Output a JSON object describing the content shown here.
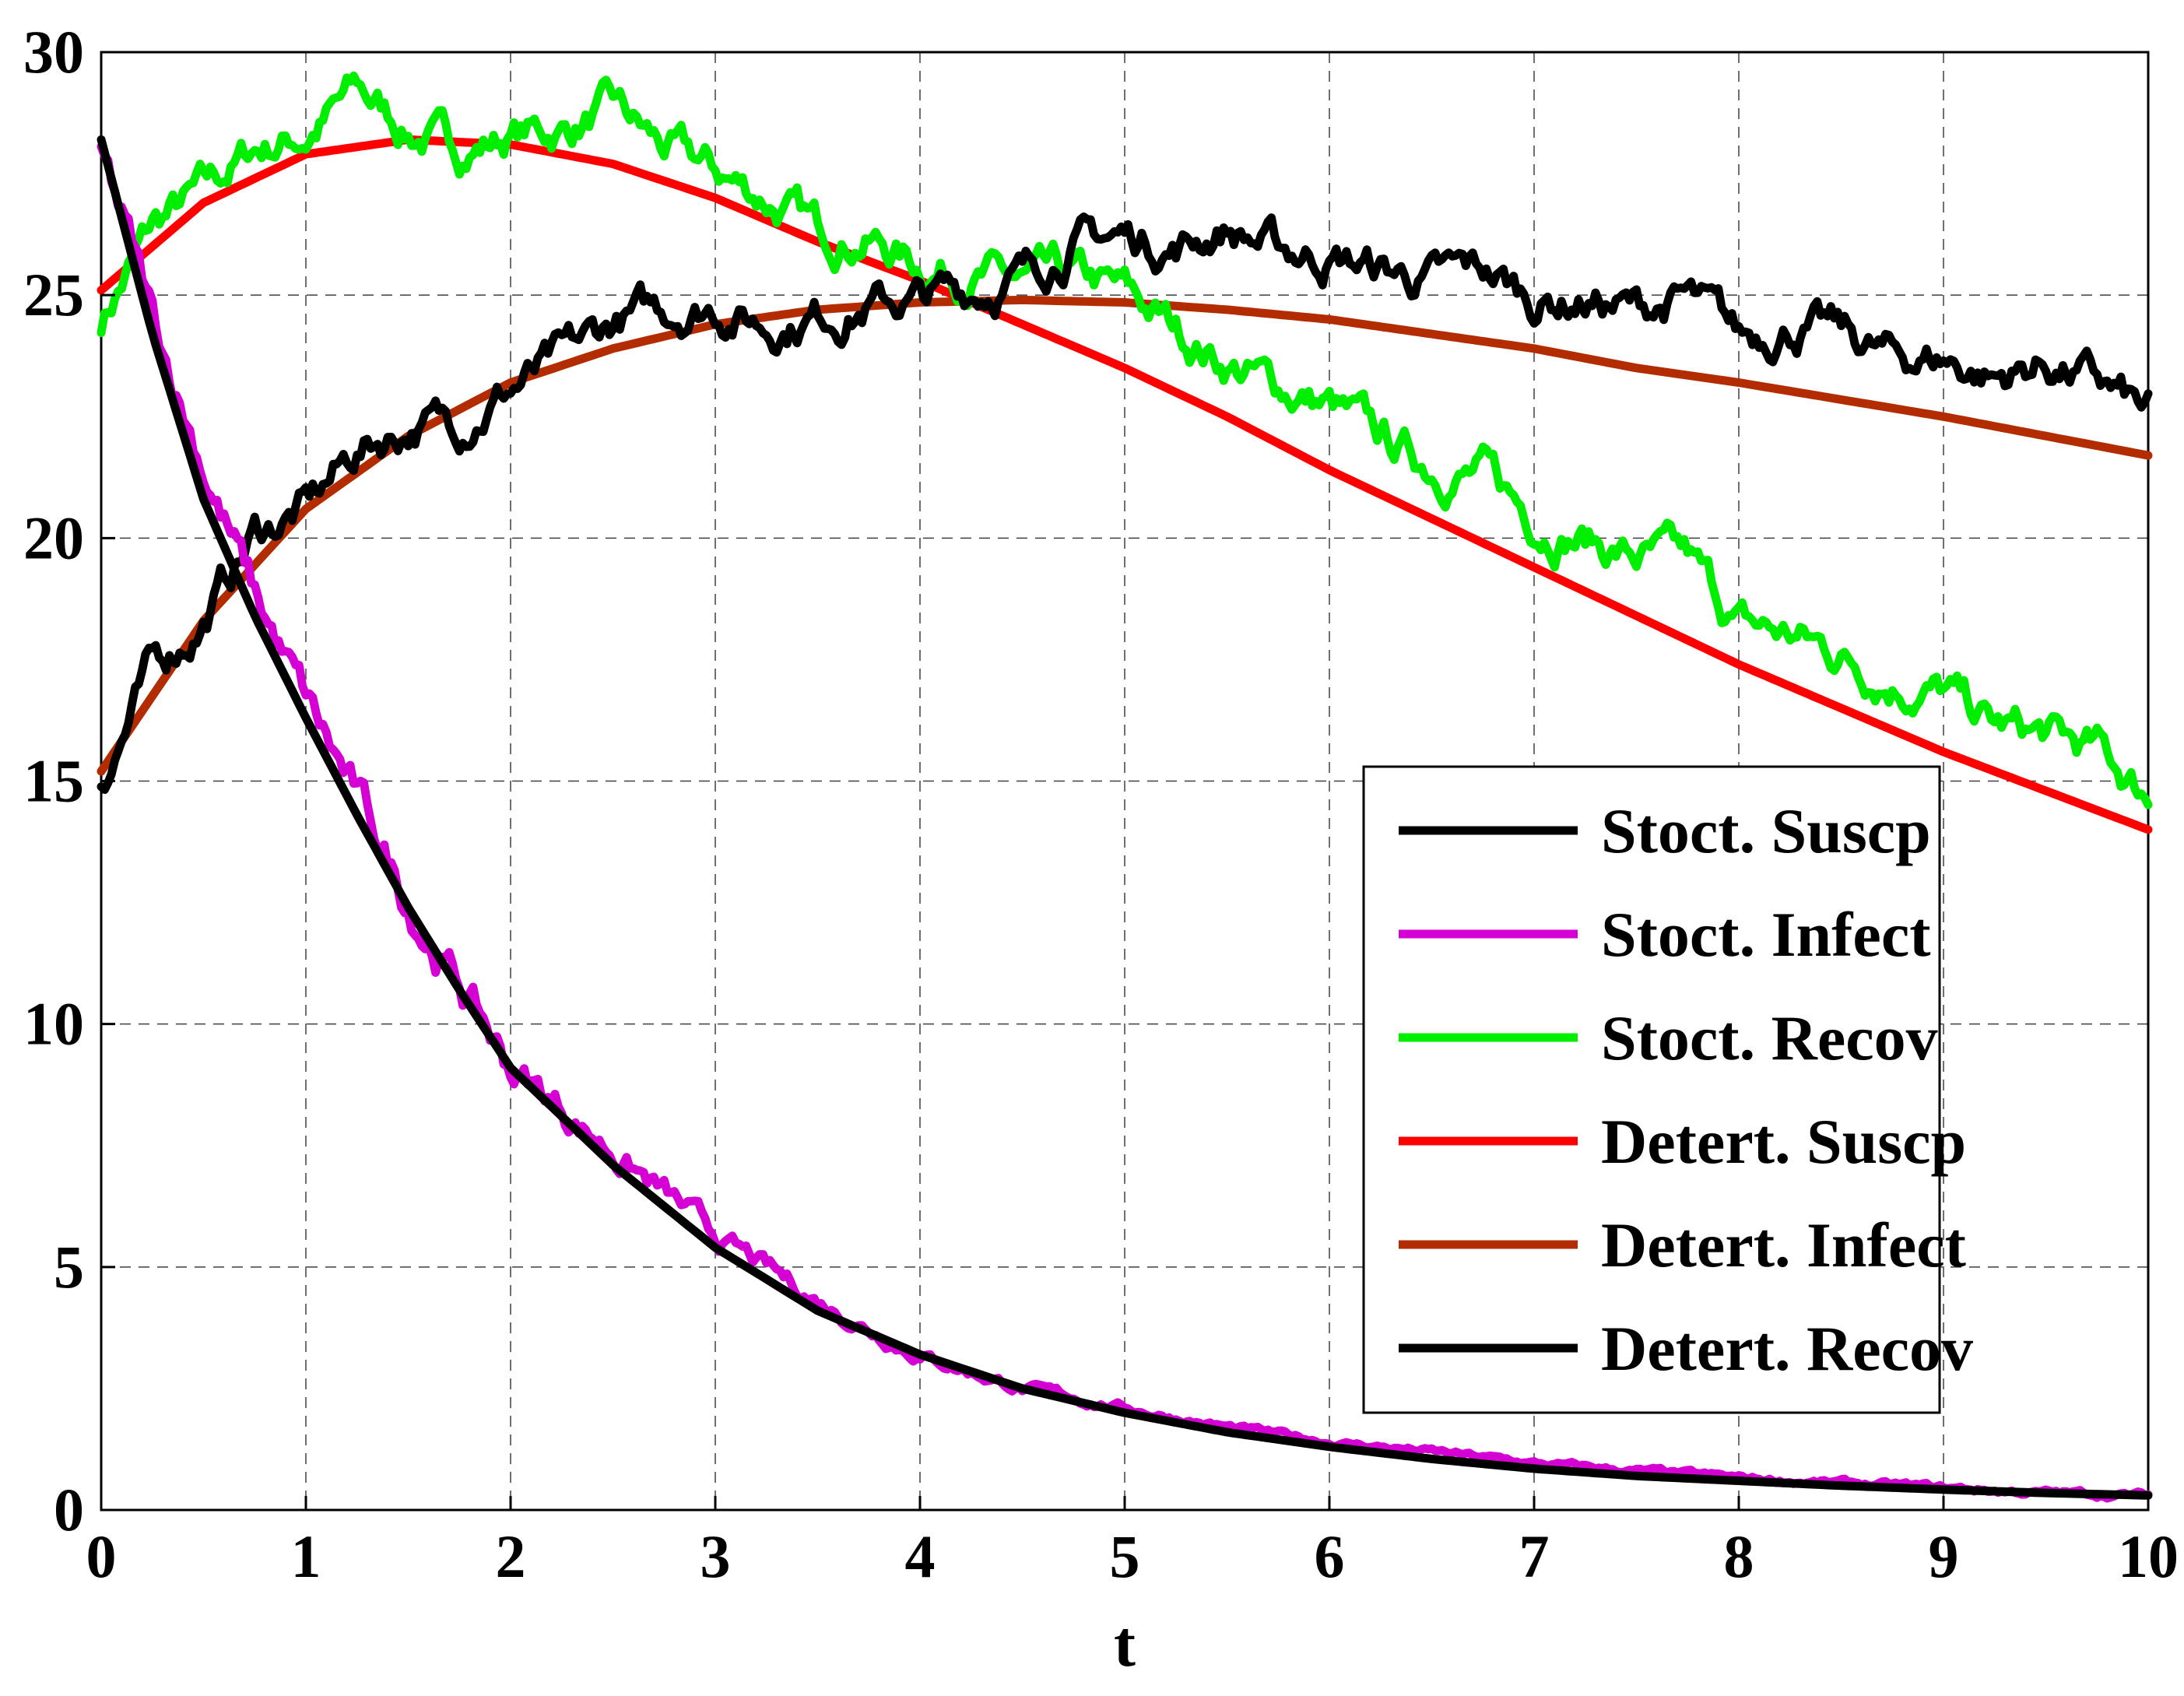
{
  "chart_data": {
    "type": "line",
    "title": "",
    "xlabel": "t",
    "ylabel": "",
    "xlim": [
      0,
      10
    ],
    "ylim": [
      0,
      30
    ],
    "xticks": [
      0,
      1,
      2,
      3,
      4,
      5,
      6,
      7,
      8,
      9,
      10
    ],
    "yticks": [
      0,
      5,
      10,
      15,
      20,
      25,
      30
    ],
    "grid": true,
    "legend_position": "lower-right",
    "series": [
      {
        "name": "Stoct. Suscp",
        "color": "#000000",
        "noisy": true,
        "x": [
          0,
          0.25,
          0.5,
          0.75,
          1,
          1.25,
          1.5,
          1.75,
          2,
          2.25,
          2.5,
          2.75,
          3,
          3.25,
          3.5,
          3.75,
          4,
          4.25,
          4.5,
          4.75,
          5,
          5.25,
          5.5,
          5.75,
          6,
          6.25,
          6.5,
          6.75,
          7,
          7.25,
          7.5,
          7.75,
          8,
          8.25,
          8.5,
          8.75,
          9,
          9.25,
          9.5,
          9.75,
          10
        ],
        "y": [
          15,
          17.3,
          18.3,
          20.1,
          20.6,
          21.8,
          22.3,
          22.4,
          23.1,
          23.6,
          24.4,
          24.7,
          24.8,
          24.4,
          24.6,
          24.8,
          24.9,
          25.1,
          25.4,
          26.1,
          26.2,
          26.0,
          26.4,
          25.9,
          25.8,
          25.5,
          25.3,
          25.5,
          24.9,
          24.9,
          24.7,
          24.9,
          24.1,
          24.4,
          24.2,
          23.7,
          23.7,
          23.3,
          23.6,
          23.2,
          22.5
        ]
      },
      {
        "name": "Stoct. Infect",
        "color": "#d400d4",
        "noisy": true,
        "x": [
          0,
          0.25,
          0.5,
          0.75,
          1,
          1.25,
          1.5,
          1.75,
          2,
          2.5,
          3,
          3.5,
          4,
          4.5,
          5,
          5.5,
          6,
          6.5,
          7,
          7.5,
          8,
          8.5,
          9,
          9.5,
          10
        ],
        "y": [
          28,
          24.5,
          21.5,
          18.8,
          16.6,
          14.6,
          12.5,
          10.8,
          9.1,
          7.4,
          5.6,
          4.3,
          3.2,
          2.5,
          2.1,
          1.7,
          1.4,
          1.2,
          0.95,
          0.8,
          0.65,
          0.55,
          0.45,
          0.35,
          0.3
        ]
      },
      {
        "name": "Stoct. Recov",
        "color": "#00ee00",
        "noisy": true,
        "x": [
          0,
          0.25,
          0.5,
          0.75,
          1,
          1.25,
          1.5,
          1.75,
          2,
          2.25,
          2.5,
          2.75,
          3,
          3.25,
          3.5,
          3.75,
          4,
          4.25,
          4.5,
          4.75,
          5,
          5.25,
          5.5,
          5.75,
          6,
          6.25,
          6.5,
          6.75,
          7,
          7.25,
          7.5,
          7.75,
          8,
          8.25,
          8.5,
          8.75,
          9,
          9.25,
          9.5,
          9.75,
          10
        ],
        "y": [
          24.5,
          26.4,
          27.1,
          28.0,
          28.3,
          29.2,
          28.4,
          28.0,
          28.3,
          28.4,
          28.8,
          28.0,
          27.5,
          27.0,
          26.3,
          26.2,
          25.6,
          25.5,
          25.2,
          25.3,
          25.0,
          24.3,
          23.6,
          23.1,
          22.7,
          22.0,
          21.5,
          21.3,
          20.4,
          20.0,
          19.6,
          19.5,
          18.2,
          18.0,
          17.6,
          17.1,
          16.8,
          16.1,
          15.9,
          15.6,
          14.7
        ]
      },
      {
        "name": "Detert. Suscp",
        "color": "#ff0000",
        "noisy": false,
        "x": [
          0,
          0.5,
          1,
          1.5,
          2,
          2.5,
          3,
          3.5,
          4,
          4.5,
          5,
          5.5,
          6,
          6.5,
          7,
          7.5,
          8,
          8.5,
          9,
          9.5,
          10
        ],
        "y": [
          25.1,
          26.9,
          27.9,
          28.2,
          28.1,
          27.7,
          27.0,
          26.1,
          25.3,
          24.4,
          23.5,
          22.5,
          21.4,
          20.4,
          19.4,
          18.4,
          17.4,
          16.5,
          15.6,
          14.8,
          14.0
        ]
      },
      {
        "name": "Detert. Infect",
        "color": "#b22c00",
        "noisy": false,
        "x": [
          0,
          0.5,
          1,
          1.5,
          2,
          2.5,
          3,
          3.5,
          4,
          4.5,
          5,
          5.5,
          6,
          6.5,
          7,
          7.5,
          8,
          8.5,
          9,
          9.5,
          10
        ],
        "y": [
          15.2,
          18.3,
          20.6,
          22.1,
          23.2,
          23.9,
          24.4,
          24.7,
          24.85,
          24.9,
          24.85,
          24.7,
          24.5,
          24.2,
          23.9,
          23.5,
          23.2,
          22.85,
          22.5,
          22.1,
          21.7
        ]
      },
      {
        "name": "Detert. Recov",
        "color": "#000000",
        "noisy": false,
        "x": [
          0,
          0.25,
          0.5,
          0.75,
          1,
          1.25,
          1.5,
          1.75,
          2,
          2.5,
          3,
          3.5,
          4,
          4.5,
          5,
          5.5,
          6,
          6.5,
          7,
          7.5,
          8,
          8.5,
          9,
          9.5,
          10
        ],
        "y": [
          28.2,
          24.2,
          20.8,
          18.4,
          16.3,
          14.3,
          12.4,
          10.7,
          9.1,
          7.1,
          5.4,
          4.1,
          3.2,
          2.5,
          2.0,
          1.6,
          1.3,
          1.05,
          0.85,
          0.7,
          0.6,
          0.5,
          0.42,
          0.35,
          0.3
        ]
      }
    ]
  }
}
